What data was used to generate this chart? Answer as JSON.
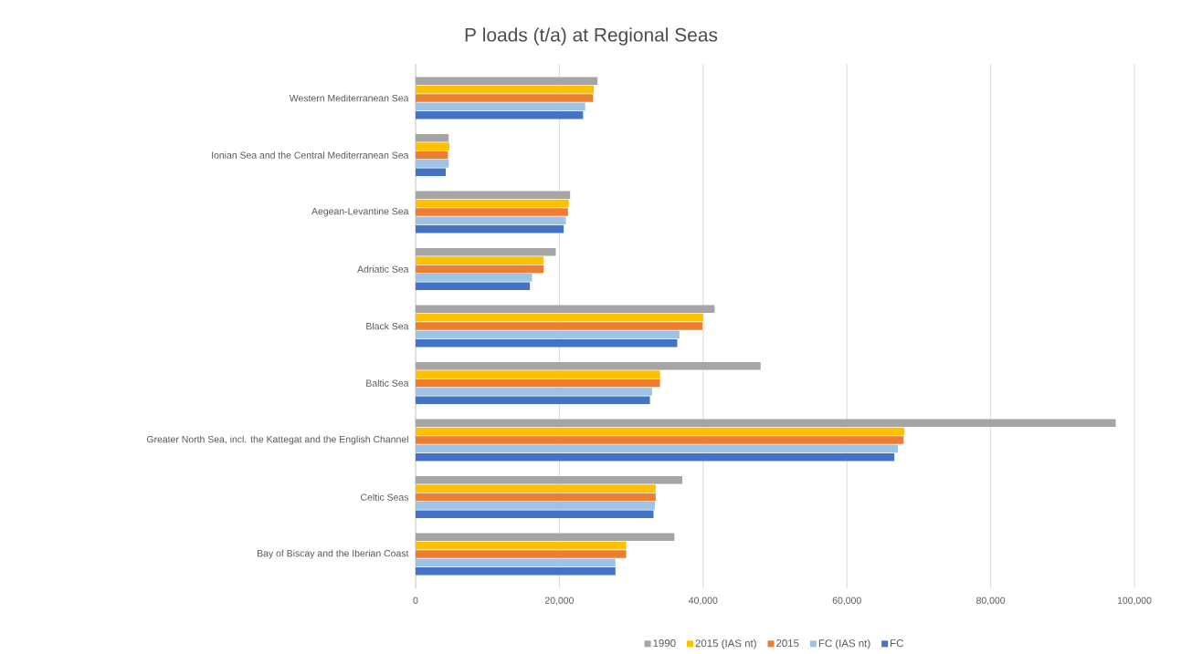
{
  "chart_data": {
    "type": "bar",
    "orientation": "horizontal",
    "title": "P loads (t/a) at Regional Seas",
    "categories": [
      "Western Mediterranean Sea",
      "Ionian Sea and the Central Mediterranean Sea",
      "Aegean-Levantine Sea",
      "Adriatic Sea",
      "Black Sea",
      "Baltic Sea",
      "Greater North Sea, incl. the Kattegat and the English Channel",
      "Celtic Seas",
      "Bay of Biscay and the Iberian Coast"
    ],
    "series": [
      {
        "name": "1990",
        "color": "#a5a5a5",
        "values": [
          25300,
          4600,
          21500,
          19500,
          41600,
          48000,
          97400,
          37100,
          36000
        ]
      },
      {
        "name": "2015 (IAS nt)",
        "color": "#ffc000",
        "values": [
          24800,
          4700,
          21300,
          17800,
          40000,
          34000,
          68000,
          33400,
          29300
        ]
      },
      {
        "name": "2015",
        "color": "#ed7d31",
        "values": [
          24700,
          4500,
          21200,
          17800,
          39900,
          34000,
          67900,
          33400,
          29300
        ]
      },
      {
        "name": "FC (IAS nt)",
        "color": "#9dc3e6",
        "values": [
          23600,
          4600,
          20900,
          16200,
          36700,
          32900,
          67100,
          33300,
          27800
        ]
      },
      {
        "name": "FC",
        "color": "#4472c4",
        "values": [
          23300,
          4200,
          20600,
          15900,
          36400,
          32600,
          66600,
          33100,
          27800
        ]
      }
    ],
    "xlim": [
      0,
      100000
    ],
    "xticks": [
      0,
      {
        "value": 20000,
        "label": "20,000"
      },
      {
        "value": 40000,
        "label": "40,000"
      },
      {
        "value": 60000,
        "label": "60,000"
      },
      {
        "value": 80000,
        "label": "80,000"
      },
      {
        "value": 100000,
        "label": "100,000"
      }
    ],
    "grid": "x",
    "legend": "bottom"
  }
}
